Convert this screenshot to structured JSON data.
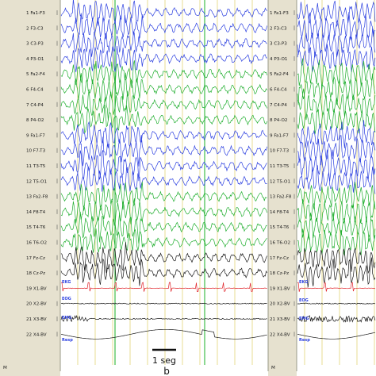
{
  "channels": [
    {
      "num": "1",
      "left": "Fa1-F3",
      "right": "Fa1-F3",
      "group": "blue"
    },
    {
      "num": "2",
      "left": "F3-C3",
      "right": "F3-C3",
      "group": "blue"
    },
    {
      "num": "3",
      "left": "C3-P3",
      "right": "C3-P3",
      "group": "blue"
    },
    {
      "num": "4",
      "left": "P3-O1",
      "right": "P3-O1",
      "group": "blue"
    },
    {
      "num": "5",
      "left": "Fa2-F4",
      "right": "Fa2-F4",
      "group": "green"
    },
    {
      "num": "6",
      "left": "F4-C4",
      "right": "F4-C4",
      "group": "green"
    },
    {
      "num": "7",
      "left": "C4-P4",
      "right": "C4-P4",
      "group": "green"
    },
    {
      "num": "8",
      "left": "P4-O2",
      "right": "P4-O2",
      "group": "green"
    },
    {
      "num": "9",
      "left": "Fa1-F7",
      "right": "Fa1-F7",
      "group": "blue"
    },
    {
      "num": "10",
      "left": "F7-T3",
      "right": "F7-T3",
      "group": "blue"
    },
    {
      "num": "11",
      "left": "T3-T5",
      "right": "T3-T5",
      "group": "blue"
    },
    {
      "num": "12",
      "left": "T5-O1",
      "right": "T5-O1",
      "group": "blue"
    },
    {
      "num": "13",
      "left": "Fa2-F8",
      "right": "Fa2-F8",
      "group": "green"
    },
    {
      "num": "14",
      "left": "F8-T4",
      "right": "F8-T4",
      "group": "green"
    },
    {
      "num": "15",
      "left": "T4-T6",
      "right": "T4-T6",
      "group": "green"
    },
    {
      "num": "16",
      "left": "T6-O2",
      "right": "T6-O2",
      "group": "green"
    },
    {
      "num": "17",
      "left": "Fz-Cz",
      "right": "Fz-Cz",
      "group": "black"
    },
    {
      "num": "18",
      "left": "Cz-Pz",
      "right": "Cz-Pz",
      "group": "black"
    },
    {
      "num": "19",
      "left": "X1-BV",
      "right": "X1-BV",
      "group": "red"
    },
    {
      "num": "20",
      "left": "X2-BV",
      "right": "X2-BV",
      "group": "black"
    },
    {
      "num": "21",
      "left": "X3-BV",
      "right": "X3-BV",
      "group": "black"
    },
    {
      "num": "22",
      "left": "X4-BV",
      "right": "X4-BV",
      "group": "black"
    }
  ],
  "side_labels": {
    "ekg": "EKG",
    "eog": "EOG",
    "emg": "EMG",
    "resp": "Resp"
  },
  "m_markers": [
    "M",
    "M"
  ],
  "scale_bar_label": "1 seg",
  "panel_label": "b",
  "colors": {
    "blue": "#2b3fe0",
    "green": "#1fae2e",
    "black": "#1a1a1a",
    "red": "#e0242a",
    "label_bg": "#e6e1cf",
    "grid_line": "#d8c84a",
    "marker_green": "#2fb83a"
  }
}
